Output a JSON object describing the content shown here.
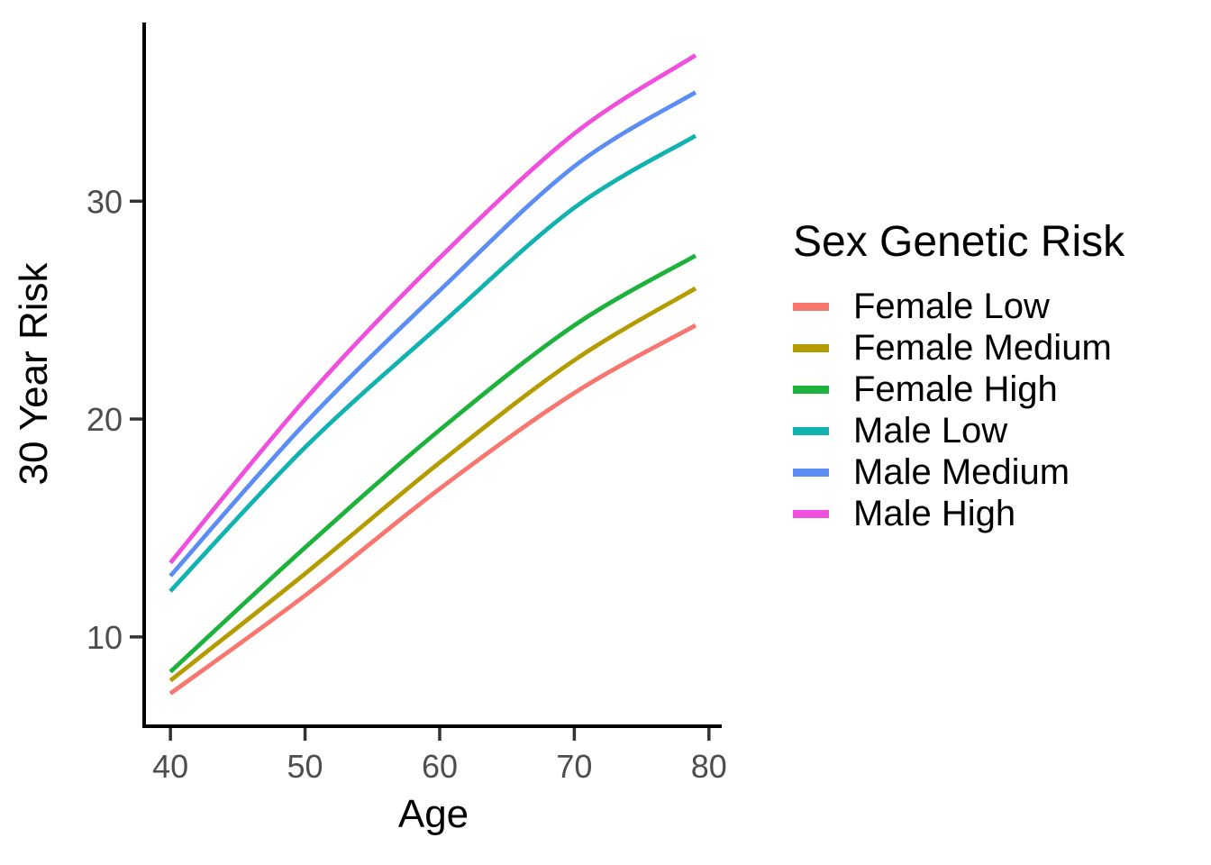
{
  "chart_data": {
    "type": "line",
    "title": "",
    "xlabel": "Age",
    "ylabel": "30 Year Risk",
    "legend_title": "Sex Genetic Risk",
    "legend_position": "right",
    "grid": false,
    "x": [
      40,
      50,
      60,
      70,
      79
    ],
    "x_ticks": [
      40,
      50,
      60,
      70,
      80
    ],
    "y_ticks": [
      10,
      20,
      30
    ],
    "xlim": [
      38.05,
      80.95
    ],
    "ylim": [
      5.9,
      38.2
    ],
    "axis_color": "#000000",
    "tick_color": "#333333",
    "tick_label_color": "#4d4d4d",
    "series": [
      {
        "name": "Female Low",
        "color": "#F8766D",
        "values": [
          7.4,
          11.9,
          16.8,
          21.2,
          24.3
        ]
      },
      {
        "name": "Female Medium",
        "color": "#B39B00",
        "values": [
          8.0,
          12.9,
          18.0,
          22.7,
          26.0
        ]
      },
      {
        "name": "Female High",
        "color": "#1CB23B",
        "values": [
          8.4,
          14.1,
          19.5,
          24.3,
          27.5
        ]
      },
      {
        "name": "Male Low",
        "color": "#10B3B0",
        "values": [
          12.1,
          18.7,
          24.3,
          29.7,
          33.0
        ]
      },
      {
        "name": "Male Medium",
        "color": "#5C8DF5",
        "values": [
          12.8,
          19.8,
          25.9,
          31.6,
          35.0
        ]
      },
      {
        "name": "Male High",
        "color": "#EF4FDC",
        "values": [
          13.4,
          20.9,
          27.4,
          33.1,
          36.7
        ]
      }
    ]
  }
}
